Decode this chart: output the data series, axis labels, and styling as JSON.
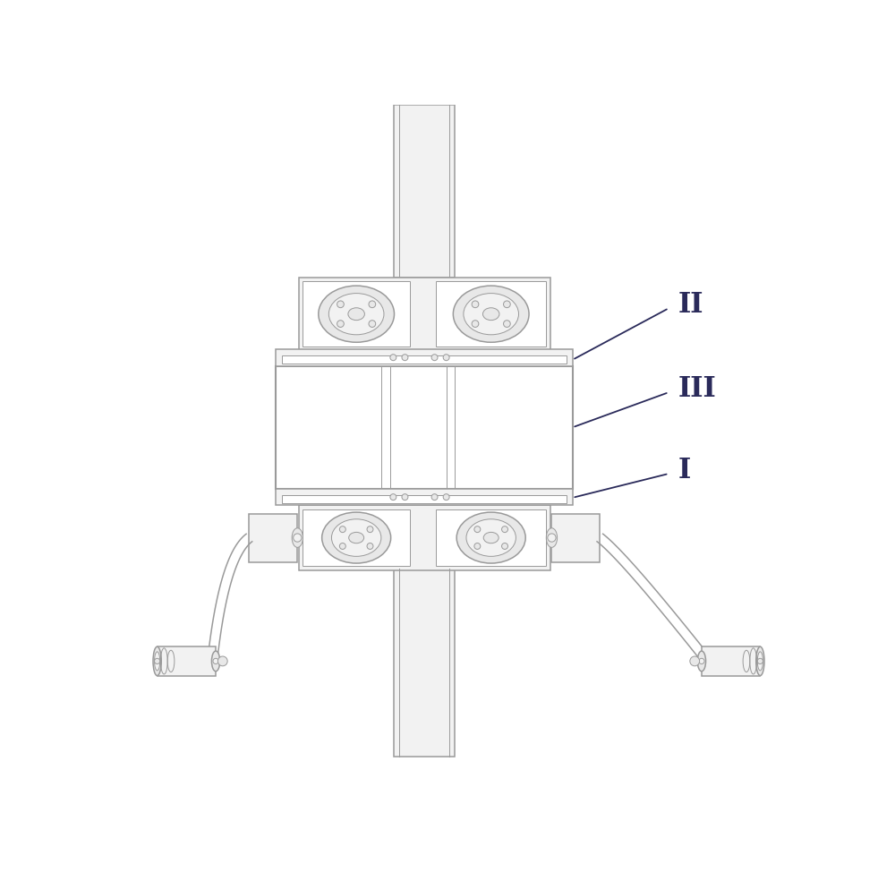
{
  "bg_color": "#ffffff",
  "lc": "#9a9a9a",
  "lc_dark": "#777777",
  "label_color": "#2a2a5a",
  "label_II": "II",
  "label_III": "III",
  "label_I": "I",
  "label_fontsize": 22,
  "figsize": [
    10.0,
    9.75
  ],
  "dpi": 100,
  "lw_thin": 0.7,
  "lw_med": 1.1,
  "lw_thick": 1.5
}
